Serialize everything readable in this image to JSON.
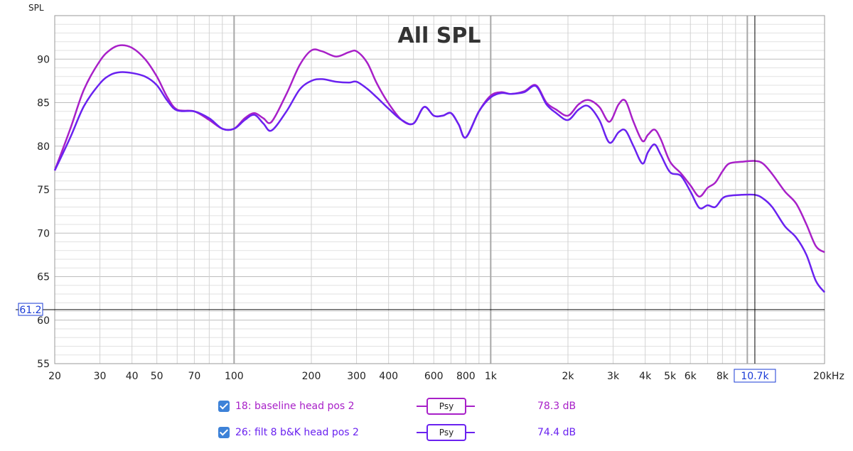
{
  "chart_data": {
    "type": "line",
    "title": "All SPL",
    "ylabel": "SPL",
    "xscale": "log",
    "xlim": [
      20,
      20000
    ],
    "ylim": [
      55,
      95
    ],
    "x_ticks": [
      {
        "v": 20,
        "label": "20"
      },
      {
        "v": 30,
        "label": "30"
      },
      {
        "v": 40,
        "label": "40"
      },
      {
        "v": 50,
        "label": "50"
      },
      {
        "v": 70,
        "label": "70"
      },
      {
        "v": 100,
        "label": "100"
      },
      {
        "v": 200,
        "label": "200"
      },
      {
        "v": 300,
        "label": "300"
      },
      {
        "v": 400,
        "label": "400"
      },
      {
        "v": 600,
        "label": "600"
      },
      {
        "v": 800,
        "label": "800"
      },
      {
        "v": 1000,
        "label": "1k"
      },
      {
        "v": 2000,
        "label": "2k"
      },
      {
        "v": 3000,
        "label": "3k"
      },
      {
        "v": 4000,
        "label": "4k"
      },
      {
        "v": 5000,
        "label": "5k"
      },
      {
        "v": 6000,
        "label": "6k"
      },
      {
        "v": 8000,
        "label": "8k"
      },
      {
        "v": 20000,
        "label": "20kHz"
      }
    ],
    "y_ticks": [
      55,
      60,
      65,
      70,
      75,
      80,
      85,
      90
    ],
    "cursor": {
      "x": 10700,
      "x_label": "10.7k",
      "y": 61.2,
      "y_label": "61.2"
    },
    "series": [
      {
        "name": "18: baseline head pos 2",
        "color": "#a820c8",
        "cursor_value": "78.3 dB",
        "points": [
          [
            20,
            77.2
          ],
          [
            23,
            82.0
          ],
          [
            26,
            86.5
          ],
          [
            30,
            89.8
          ],
          [
            33,
            91.1
          ],
          [
            36,
            91.6
          ],
          [
            40,
            91.3
          ],
          [
            45,
            90.0
          ],
          [
            50,
            88.0
          ],
          [
            55,
            85.6
          ],
          [
            60,
            84.2
          ],
          [
            70,
            84.0
          ],
          [
            80,
            83.0
          ],
          [
            90,
            82.0
          ],
          [
            100,
            82.0
          ],
          [
            110,
            83.2
          ],
          [
            120,
            83.8
          ],
          [
            130,
            83.2
          ],
          [
            140,
            82.8
          ],
          [
            160,
            86.0
          ],
          [
            180,
            89.3
          ],
          [
            200,
            91.0
          ],
          [
            220,
            90.9
          ],
          [
            250,
            90.3
          ],
          [
            280,
            90.8
          ],
          [
            300,
            90.9
          ],
          [
            330,
            89.6
          ],
          [
            360,
            87.2
          ],
          [
            400,
            84.9
          ],
          [
            450,
            83.0
          ],
          [
            500,
            82.6
          ],
          [
            550,
            84.5
          ],
          [
            600,
            83.5
          ],
          [
            650,
            83.5
          ],
          [
            700,
            83.8
          ],
          [
            750,
            82.5
          ],
          [
            800,
            81.0
          ],
          [
            900,
            84.0
          ],
          [
            1000,
            85.8
          ],
          [
            1100,
            86.2
          ],
          [
            1200,
            86.0
          ],
          [
            1350,
            86.3
          ],
          [
            1500,
            87.0
          ],
          [
            1650,
            85.0
          ],
          [
            1800,
            84.2
          ],
          [
            2000,
            83.5
          ],
          [
            2200,
            84.8
          ],
          [
            2400,
            85.3
          ],
          [
            2650,
            84.5
          ],
          [
            2900,
            82.8
          ],
          [
            3150,
            84.8
          ],
          [
            3350,
            85.2
          ],
          [
            3600,
            82.8
          ],
          [
            3900,
            80.6
          ],
          [
            4100,
            81.3
          ],
          [
            4350,
            81.9
          ],
          [
            4600,
            80.8
          ],
          [
            5000,
            78.2
          ],
          [
            5500,
            76.9
          ],
          [
            6000,
            75.5
          ],
          [
            6500,
            74.2
          ],
          [
            7000,
            75.2
          ],
          [
            7500,
            75.8
          ],
          [
            8000,
            77.1
          ],
          [
            8500,
            78.0
          ],
          [
            9500,
            78.2
          ],
          [
            10700,
            78.3
          ],
          [
            11500,
            78.0
          ],
          [
            12500,
            76.8
          ],
          [
            14000,
            74.8
          ],
          [
            15500,
            73.4
          ],
          [
            17000,
            71.0
          ],
          [
            18500,
            68.5
          ],
          [
            20000,
            67.8
          ]
        ]
      },
      {
        "name": "26: filt 8 b&K head pos 2",
        "color": "#6a22f0",
        "cursor_value": "74.4 dB",
        "points": [
          [
            20,
            77.2
          ],
          [
            23,
            81.0
          ],
          [
            26,
            84.6
          ],
          [
            30,
            87.2
          ],
          [
            33,
            88.2
          ],
          [
            36,
            88.5
          ],
          [
            40,
            88.4
          ],
          [
            45,
            88.0
          ],
          [
            50,
            87.0
          ],
          [
            55,
            85.2
          ],
          [
            60,
            84.1
          ],
          [
            70,
            84.0
          ],
          [
            80,
            83.2
          ],
          [
            90,
            82.0
          ],
          [
            100,
            82.0
          ],
          [
            110,
            83.0
          ],
          [
            120,
            83.6
          ],
          [
            130,
            82.6
          ],
          [
            140,
            81.8
          ],
          [
            160,
            84.0
          ],
          [
            180,
            86.5
          ],
          [
            200,
            87.5
          ],
          [
            220,
            87.7
          ],
          [
            250,
            87.4
          ],
          [
            280,
            87.3
          ],
          [
            300,
            87.4
          ],
          [
            330,
            86.6
          ],
          [
            360,
            85.6
          ],
          [
            400,
            84.3
          ],
          [
            450,
            83.0
          ],
          [
            500,
            82.6
          ],
          [
            550,
            84.5
          ],
          [
            600,
            83.5
          ],
          [
            650,
            83.5
          ],
          [
            700,
            83.8
          ],
          [
            750,
            82.5
          ],
          [
            800,
            81.0
          ],
          [
            900,
            84.0
          ],
          [
            1000,
            85.6
          ],
          [
            1100,
            86.1
          ],
          [
            1200,
            86.0
          ],
          [
            1350,
            86.2
          ],
          [
            1500,
            86.9
          ],
          [
            1650,
            84.8
          ],
          [
            1800,
            83.8
          ],
          [
            2000,
            83.0
          ],
          [
            2200,
            84.2
          ],
          [
            2400,
            84.6
          ],
          [
            2650,
            83.0
          ],
          [
            2900,
            80.4
          ],
          [
            3150,
            81.6
          ],
          [
            3350,
            81.8
          ],
          [
            3600,
            80.0
          ],
          [
            3900,
            78.0
          ],
          [
            4100,
            79.3
          ],
          [
            4350,
            80.2
          ],
          [
            4600,
            79.0
          ],
          [
            5000,
            77.0
          ],
          [
            5500,
            76.6
          ],
          [
            6000,
            74.8
          ],
          [
            6500,
            72.9
          ],
          [
            7000,
            73.2
          ],
          [
            7500,
            73.0
          ],
          [
            8000,
            74.0
          ],
          [
            8500,
            74.3
          ],
          [
            9500,
            74.4
          ],
          [
            10700,
            74.4
          ],
          [
            11500,
            74.0
          ],
          [
            12500,
            73.0
          ],
          [
            14000,
            70.8
          ],
          [
            15500,
            69.5
          ],
          [
            17000,
            67.5
          ],
          [
            18500,
            64.5
          ],
          [
            20000,
            63.2
          ]
        ]
      }
    ],
    "legend": [
      {
        "label": "18: baseline head pos 2",
        "smoothing": "Psy",
        "value": "78.3 dB",
        "color": "#a820c8"
      },
      {
        "label": "26: filt 8 b&K head pos 2",
        "smoothing": "Psy",
        "value": "74.4 dB",
        "color": "#6a22f0"
      }
    ]
  }
}
